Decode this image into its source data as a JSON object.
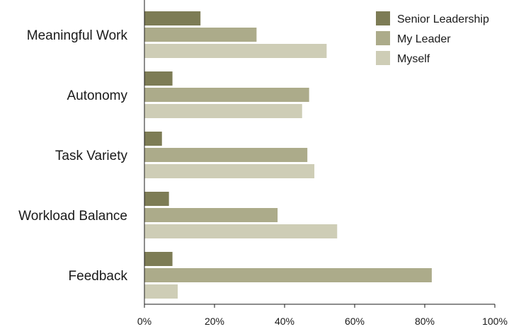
{
  "chart_data": {
    "type": "bar",
    "orientation": "horizontal",
    "categories": [
      "Meaningful Work",
      "Autonomy",
      "Task Variety",
      "Workload Balance",
      "Feedback"
    ],
    "series": [
      {
        "name": "Senior Leadership",
        "color": "#7d7c55",
        "values": [
          16,
          8,
          5,
          7,
          8
        ]
      },
      {
        "name": "My Leader",
        "color": "#acab8a",
        "values": [
          32,
          47,
          46.5,
          38,
          82
        ]
      },
      {
        "name": "Myself",
        "color": "#cecdb6",
        "values": [
          52,
          45,
          48.5,
          55,
          9.5
        ]
      }
    ],
    "x_ticks": [
      "0%",
      "20%",
      "40%",
      "60%",
      "80%",
      "100%"
    ],
    "xlim": [
      0,
      100
    ],
    "grid": false,
    "legend_position": "top-right"
  }
}
